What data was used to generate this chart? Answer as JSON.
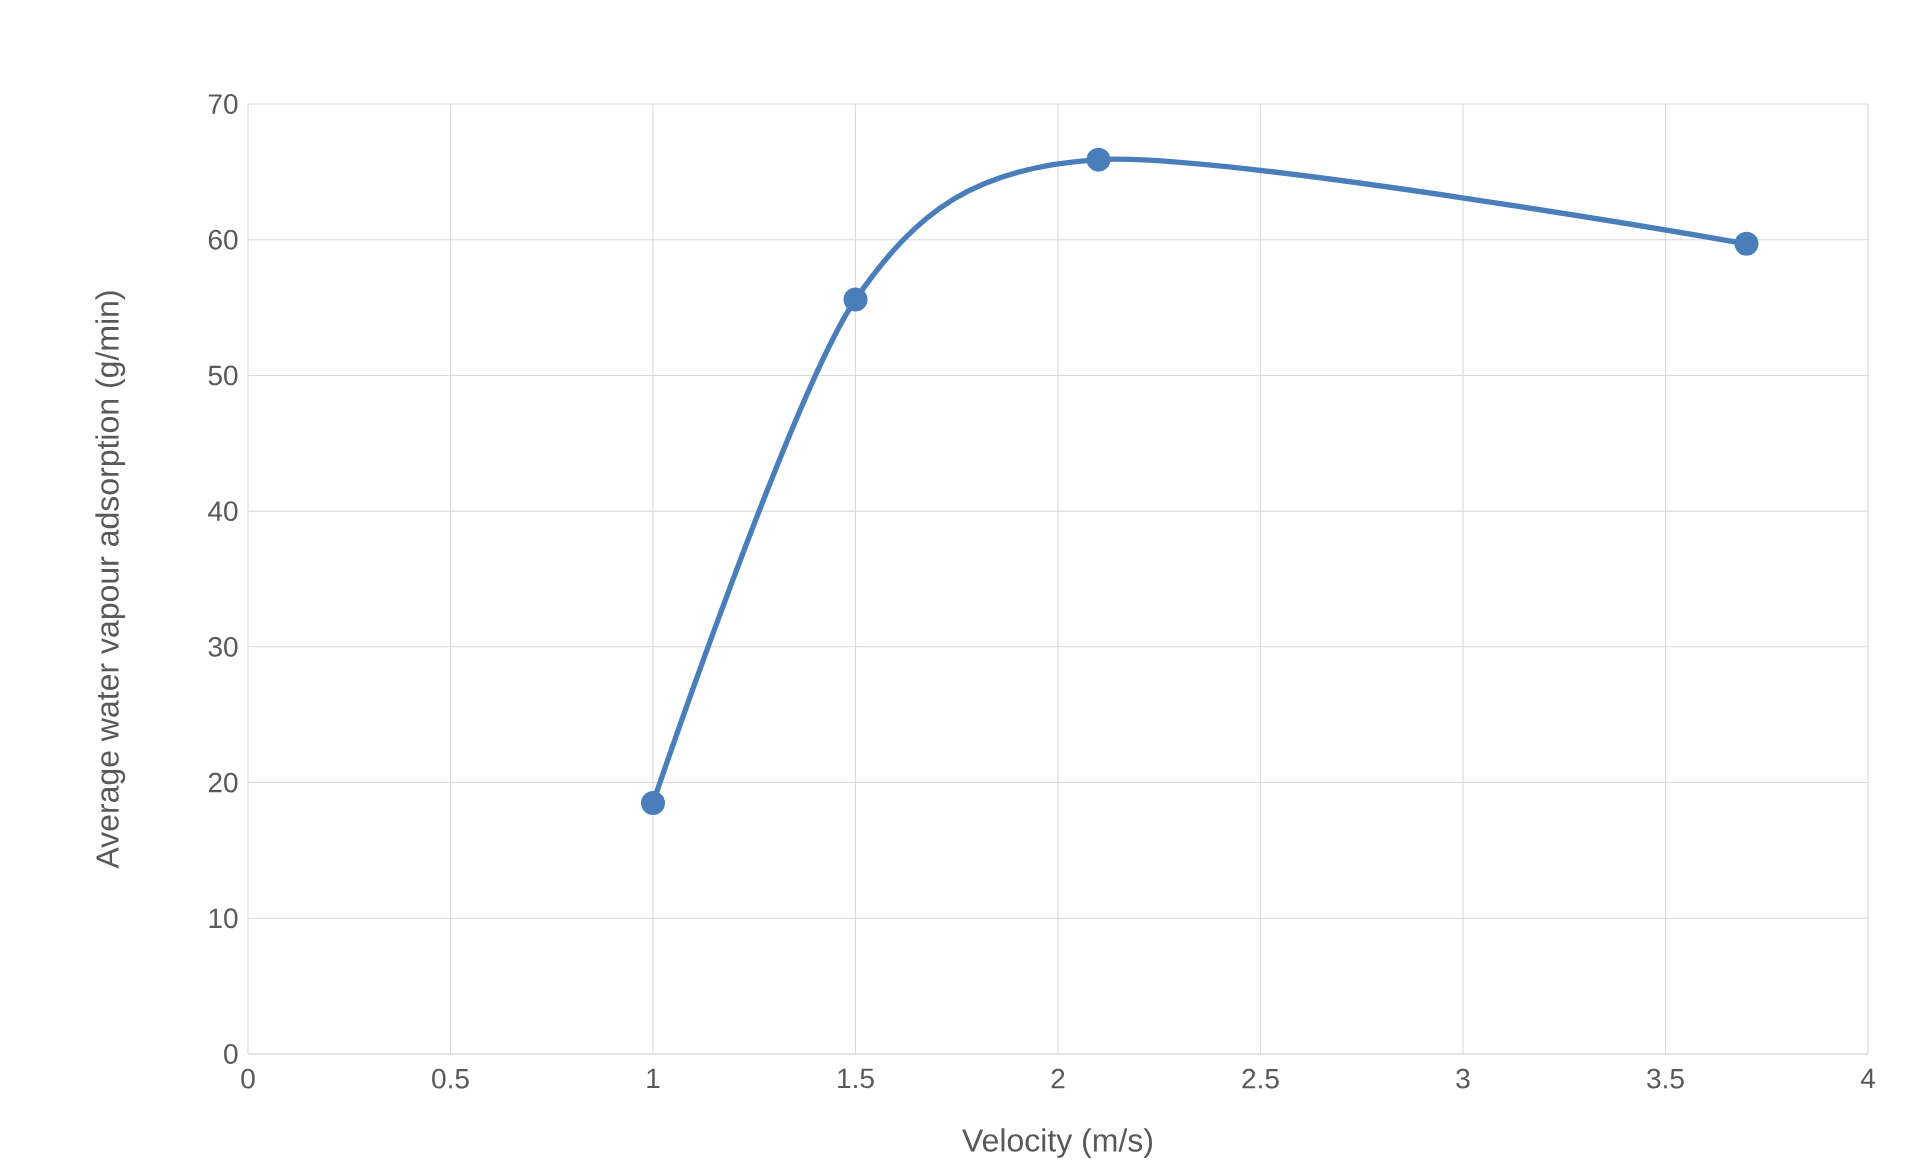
{
  "chart_data": {
    "type": "line",
    "xlabel": "Velocity (m/s)",
    "ylabel": "Average water vapour adsorption (g/min)",
    "x": [
      1,
      1.5,
      2.1,
      3.7
    ],
    "series": [
      {
        "color": "#4a7ebb",
        "values": [
          18.5,
          55.6,
          65.9,
          59.7
        ]
      }
    ],
    "xlim": [
      0,
      4
    ],
    "ylim": [
      0,
      70
    ],
    "xticks": [
      0,
      0.5,
      1,
      1.5,
      2,
      2.5,
      3,
      3.5,
      4
    ],
    "yticks": [
      0,
      10,
      20,
      30,
      40,
      50,
      60,
      70
    ],
    "grid": true,
    "marker": "circle"
  }
}
